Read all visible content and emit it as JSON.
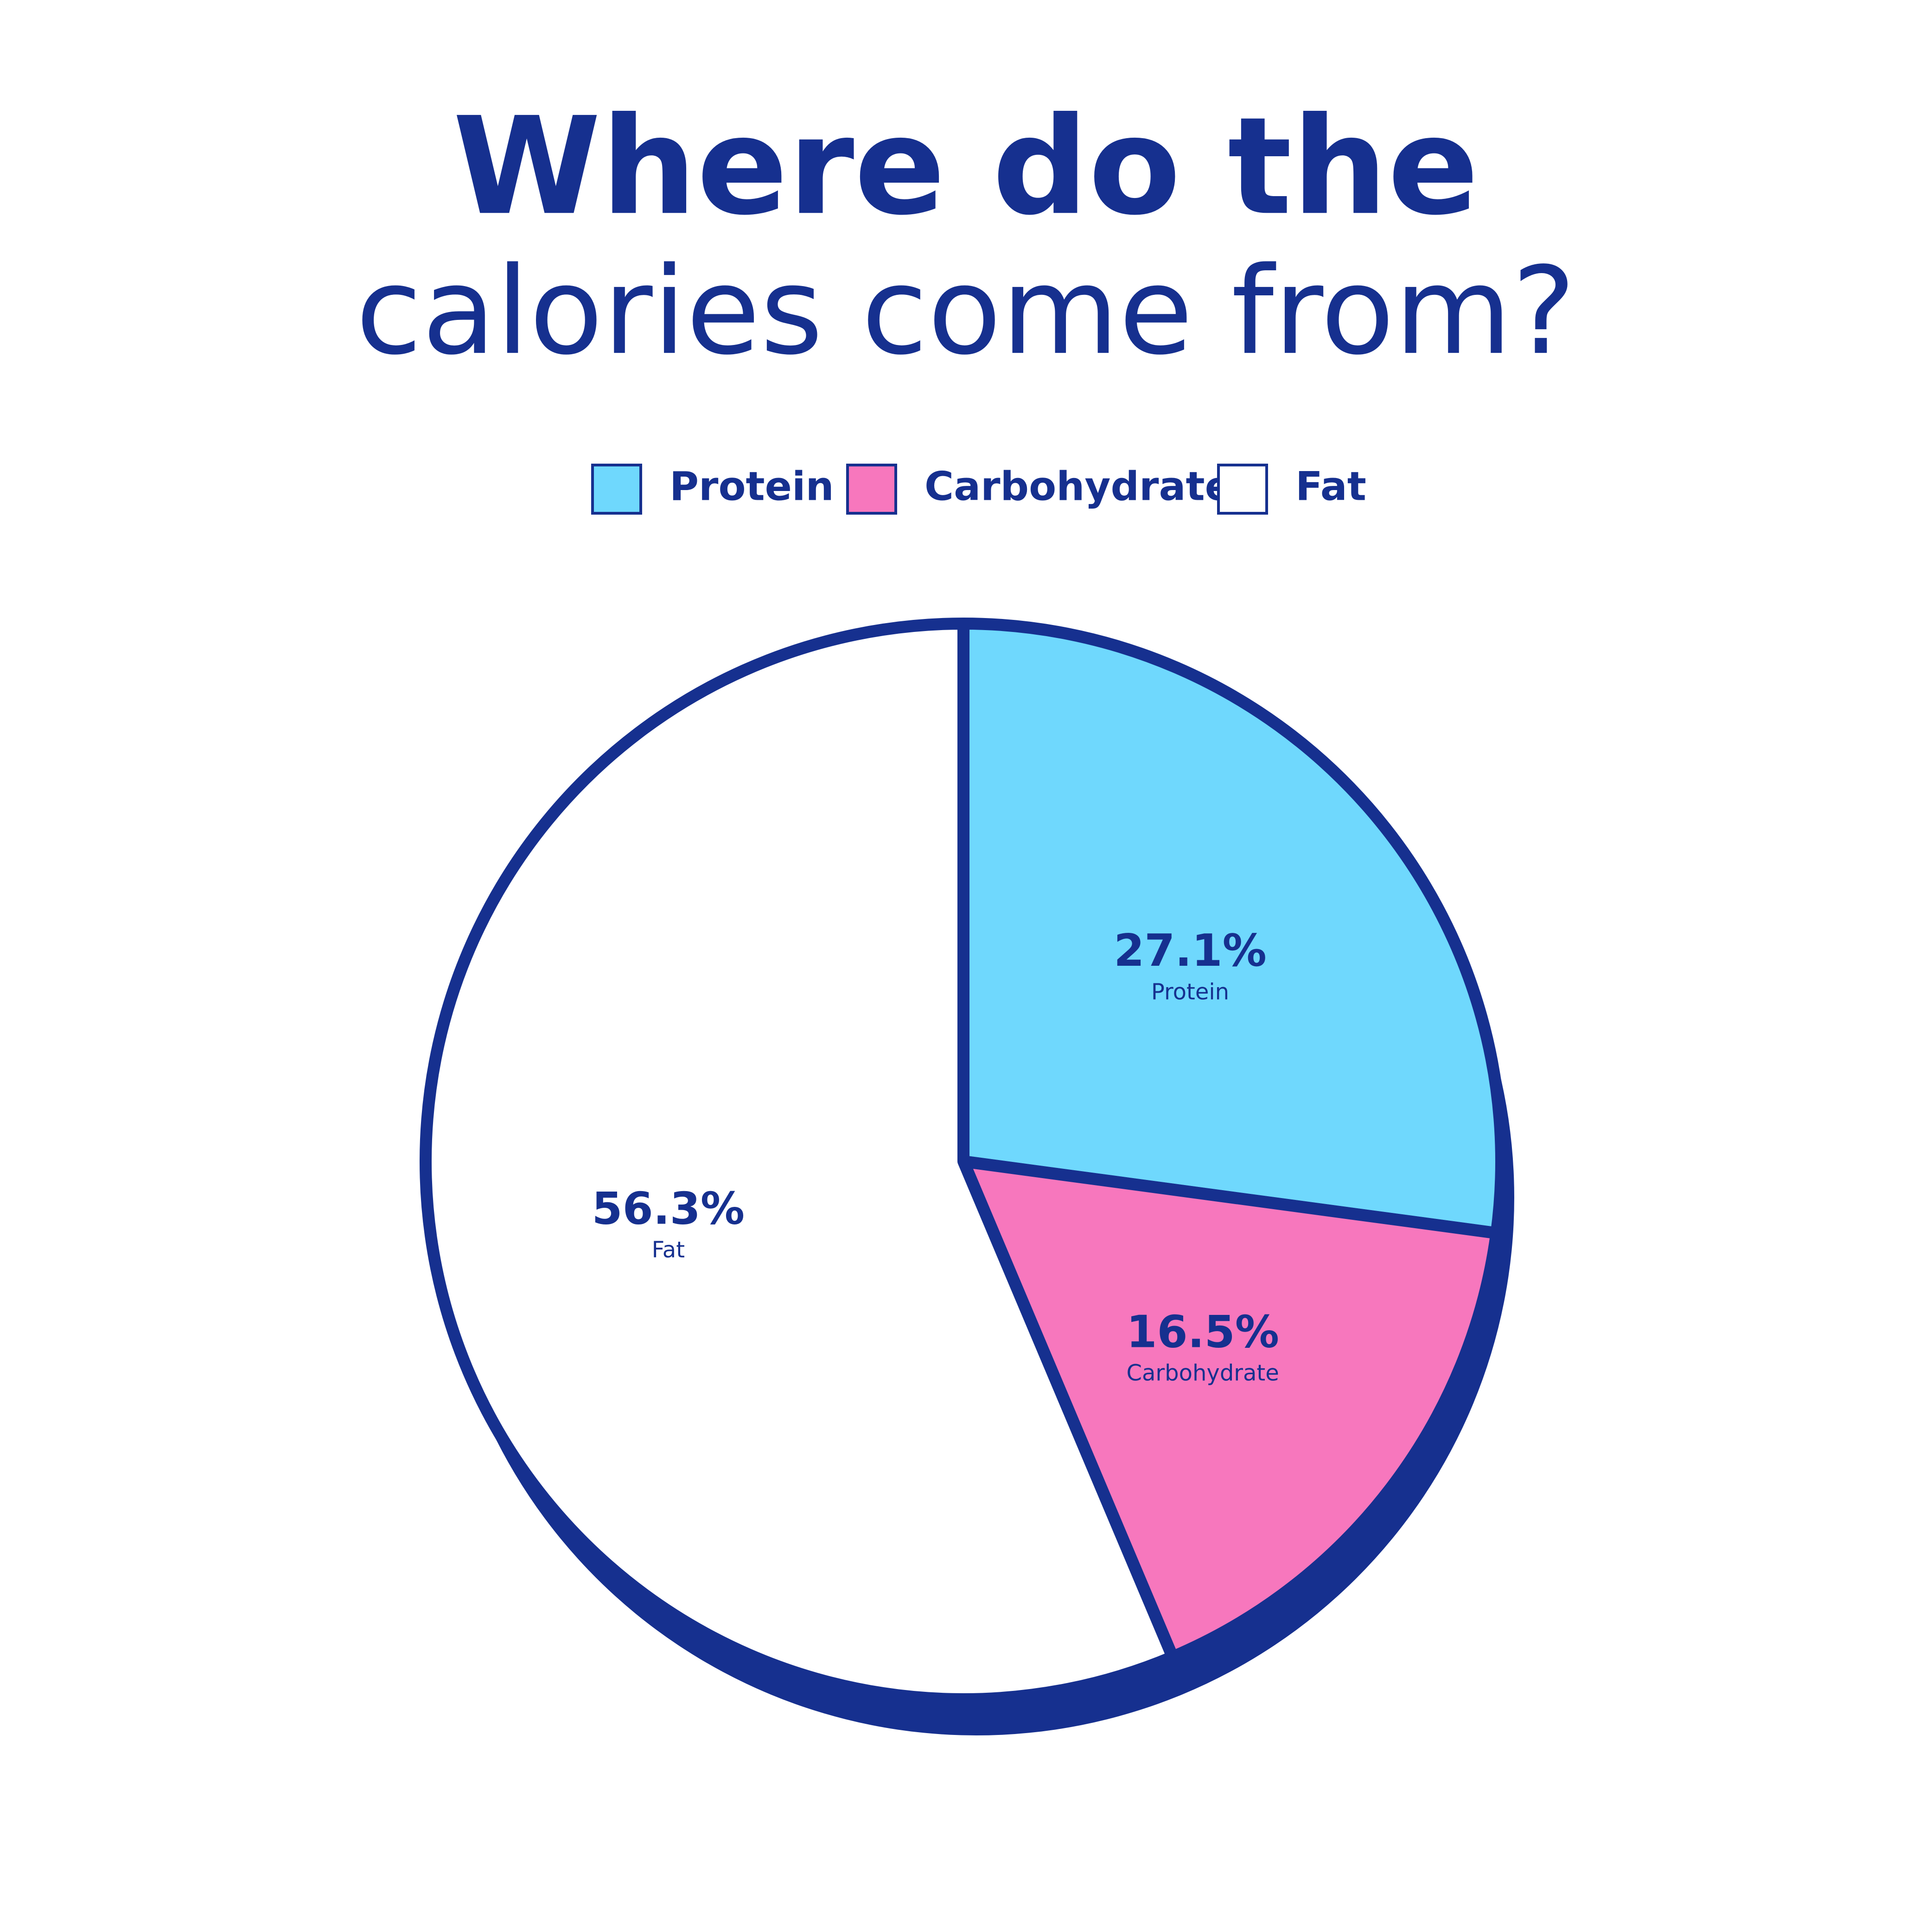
{
  "chart_data": {
    "type": "pie",
    "title": "Where do the",
    "subtitle": "calories come from?",
    "categories": [
      "Protein",
      "Carbohydrate",
      "Fat"
    ],
    "values": [
      27.1,
      16.5,
      56.3
    ],
    "value_labels": [
      "27.1%",
      "16.5%",
      "56.3%"
    ],
    "colors": [
      "#6fd8fd",
      "#f777bd",
      "#ffffff"
    ],
    "legend": "top"
  }
}
